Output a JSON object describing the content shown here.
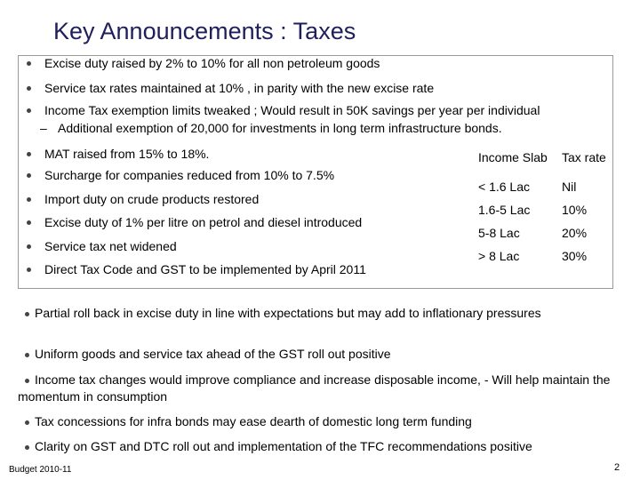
{
  "title": "Key Announcements : Taxes",
  "box_bullets": [
    "Excise duty raised by 2% to 10% for all non petroleum goods",
    "Service tax rates maintained at 10% , in parity with the new excise rate",
    "Income Tax exemption limits tweaked ; Would result in 50K savings per year per individual",
    "MAT raised from 15% to 18%.",
    "Surcharge for companies reduced from 10% to 7.5%",
    "Import duty on crude products restored",
    "Excise duty of 1% per litre on petrol and diesel introduced",
    "Service tax net widened",
    "Direct Tax Code and  GST to be  implemented by April 2011"
  ],
  "sub_bullet": "Additional exemption of 20,000  for investments in long term infrastructure bonds.",
  "table": {
    "header": [
      "Income Slab",
      "Tax rate"
    ],
    "rows": [
      [
        "< 1.6 Lac",
        "Nil"
      ],
      [
        "1.6-5 Lac",
        "10%"
      ],
      [
        "5-8 Lac",
        "20%"
      ],
      [
        "> 8 Lac",
        "30%"
      ]
    ]
  },
  "bottom_bullets": [
    "Partial roll back in excise duty in line with expectations  but may add to inflationary pressures",
    "Uniform goods and service tax ahead of the GST roll out positive",
    "Income tax changes would improve compliance and increase disposable income, - Will help maintain the momentum in consumption",
    "Tax concessions for infra bonds may ease dearth of domestic long term funding",
    "Clarity on GST and DTC roll out and implementation of the TFC recommendations positive"
  ],
  "footer": "Budget 2010-11",
  "page_number": "2"
}
